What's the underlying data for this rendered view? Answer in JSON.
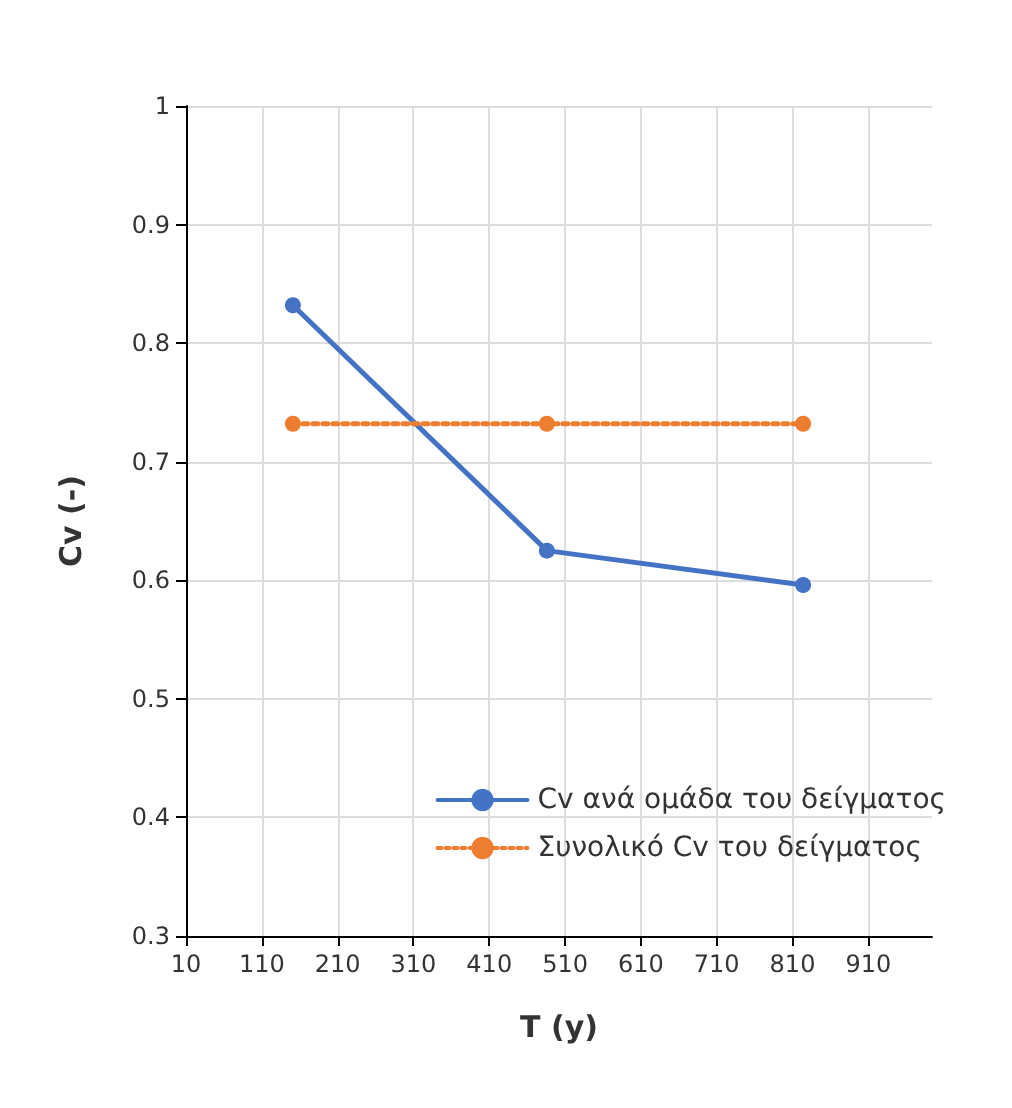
{
  "chart_data": {
    "type": "line",
    "xlabel": "T (y)",
    "ylabel": "Cv (-)",
    "x": [
      151,
      486,
      824
    ],
    "series": [
      {
        "name": "Cv ανά ομάδα του δείγματος",
        "color": "#4472c4",
        "values": [
          0.832,
          0.625,
          0.596
        ],
        "line_style": "solid"
      },
      {
        "name": "Συνολικό Cv του δείγματος",
        "color": "#ed7d31",
        "values": [
          0.732,
          0.732,
          0.732
        ],
        "line_style": "dotted"
      }
    ],
    "xlim": [
      10,
      994
    ],
    "xticks": [
      10,
      110,
      210,
      310,
      410,
      510,
      610,
      710,
      810,
      910
    ],
    "ylim": [
      0.3,
      1
    ],
    "yticks": [
      0.3,
      0.4,
      0.5,
      0.6,
      0.7,
      0.8,
      0.9,
      1
    ],
    "grid": true,
    "legend": "bottom right",
    "marker": "circle"
  }
}
